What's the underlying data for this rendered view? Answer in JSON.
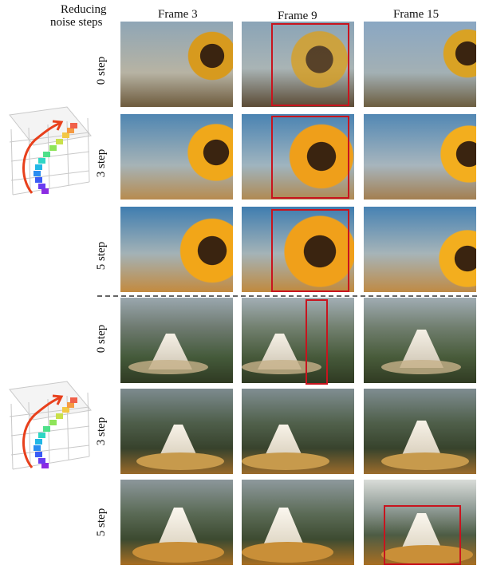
{
  "header": {
    "corner_label_line1": "Reducing",
    "corner_label_line2": "noise steps",
    "columns": [
      "Frame 3",
      "Frame 9",
      "Frame 15"
    ]
  },
  "groups": [
    {
      "name": "sunflower",
      "rows": [
        {
          "label": "0 step"
        },
        {
          "label": "3 step"
        },
        {
          "label": "5 step"
        }
      ]
    },
    {
      "name": "temple",
      "rows": [
        {
          "label": "0 step"
        },
        {
          "label": "3 step"
        },
        {
          "label": "5 step"
        }
      ]
    }
  ],
  "colors": {
    "highlight": "#c8141e",
    "trajectory_arrow": "#e8401c"
  },
  "icons": [
    "camera-trajectory-icon"
  ]
}
